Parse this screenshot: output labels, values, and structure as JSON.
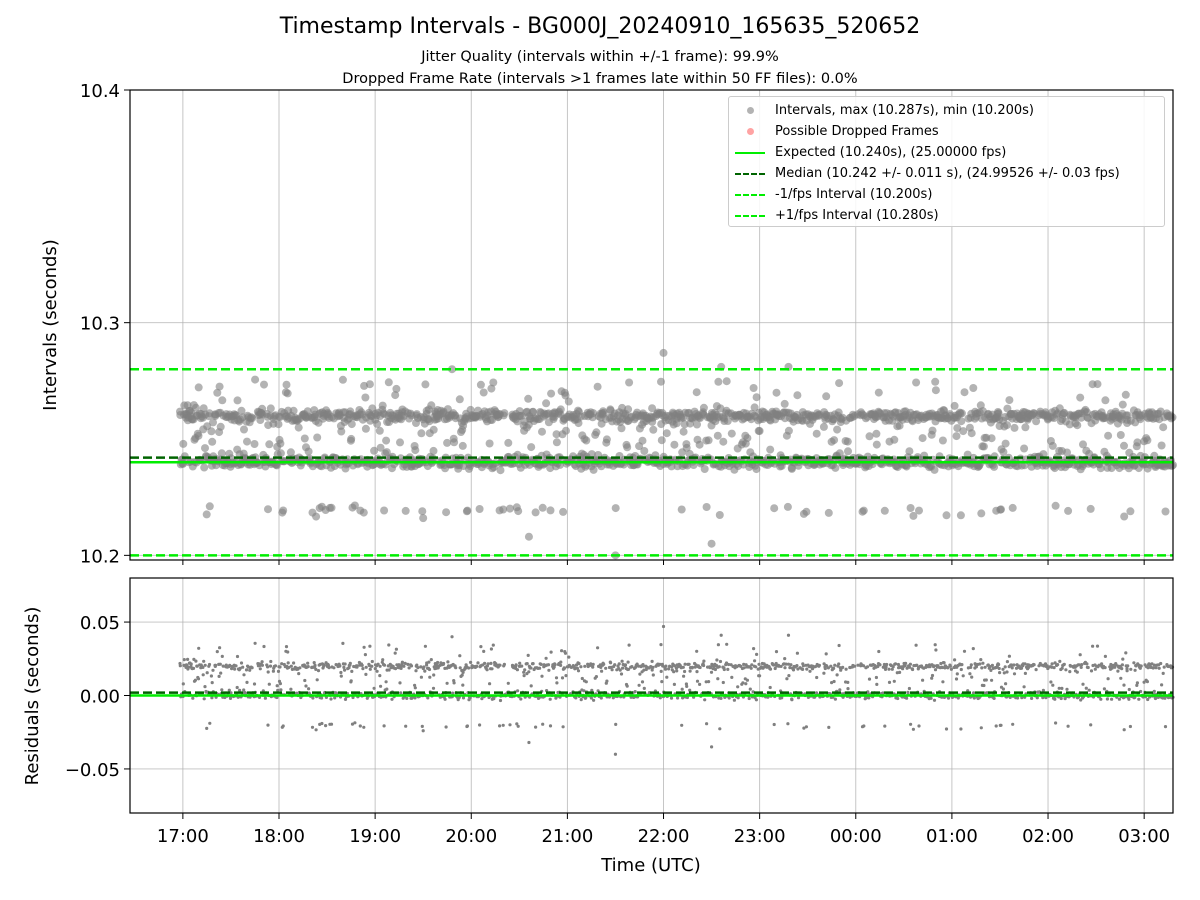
{
  "title": "Timestamp Intervals - BG000J_20240910_165635_520652",
  "subtitle_jitter": "Jitter Quality (intervals within +/-1 frame): 99.9%",
  "subtitle_dropped": "Dropped Frame Rate (intervals >1 frames late within 50 FF files): 0.0%",
  "legend": [
    {
      "label": "Intervals, max (10.287s), min (10.200s)",
      "kind": "dot",
      "color": "#808080"
    },
    {
      "label": "Possible Dropped Frames",
      "kind": "dot",
      "color": "#ff6666"
    },
    {
      "label": "Expected (10.240s), (25.00000 fps)",
      "kind": "solid",
      "color": "#00ee00"
    },
    {
      "label": "Median (10.242 +/- 0.011 s), (24.99526 +/- 0.03 fps)",
      "kind": "dashed",
      "color": "#006400"
    },
    {
      "label": "-1/fps Interval (10.200s)",
      "kind": "dashed",
      "color": "#00ee00"
    },
    {
      "label": "+1/fps Interval (10.280s)",
      "kind": "dashed",
      "color": "#00ee00"
    }
  ],
  "chart_data": [
    {
      "type": "scatter",
      "name": "intervals",
      "ylabel": "Intervals (seconds)",
      "xlabel": "",
      "ylim": [
        10.198,
        10.4
      ],
      "yticks": [
        "10.2",
        "10.3",
        "10.4"
      ],
      "grid": true,
      "x_range_hours": [
        16.45,
        27.3
      ],
      "data_start_hour": 16.97,
      "data_end_hour": 27.3,
      "scatter_summary": {
        "band_upper": 10.26,
        "band_lower": 10.24,
        "min": 10.2,
        "max": 10.287,
        "color": "#808080"
      },
      "reference_lines": [
        {
          "name": "Expected",
          "value": 10.24,
          "style": "solid",
          "color": "#00ee00"
        },
        {
          "name": "Median",
          "value": 10.242,
          "style": "dashed",
          "color": "#006400"
        },
        {
          "name": "-1/fps Interval",
          "value": 10.2,
          "style": "dashed",
          "color": "#00ee00"
        },
        {
          "name": "+1/fps Interval",
          "value": 10.28,
          "style": "dashed",
          "color": "#00ee00"
        }
      ]
    },
    {
      "type": "scatter",
      "name": "residuals",
      "ylabel": "Residuals (seconds)",
      "xlabel": "Time (UTC)",
      "ylim": [
        -0.08,
        0.08
      ],
      "yticks": [
        "−0.05",
        "0.00",
        "0.05"
      ],
      "ytick_values": [
        -0.05,
        0.0,
        0.05
      ],
      "xticks": [
        "17:00",
        "18:00",
        "19:00",
        "20:00",
        "21:00",
        "22:00",
        "23:00",
        "00:00",
        "01:00",
        "02:00",
        "03:00"
      ],
      "xtick_hours": [
        17,
        18,
        19,
        20,
        21,
        22,
        23,
        24,
        25,
        26,
        27
      ],
      "grid": true,
      "scatter_summary": {
        "band_upper": 0.02,
        "band_lower": 0.0,
        "min": -0.04,
        "max": 0.047,
        "color": "#808080"
      },
      "reference_lines": [
        {
          "name": "Expected",
          "value": 0.0,
          "style": "solid",
          "color": "#00ee00"
        },
        {
          "name": "Median",
          "value": 0.002,
          "style": "dashed",
          "color": "#006400"
        }
      ]
    }
  ]
}
